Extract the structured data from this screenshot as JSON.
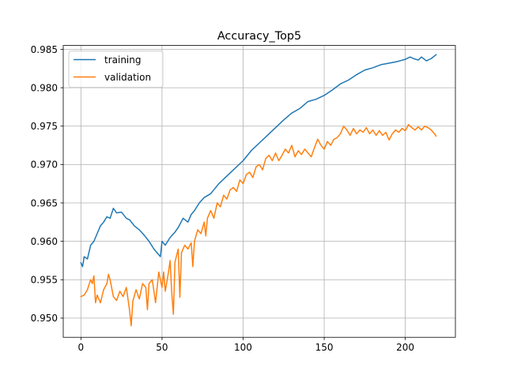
{
  "chart_data": {
    "type": "line",
    "title": "Accuracy_Top5",
    "xlabel": "",
    "ylabel": "",
    "xlim": [
      -10.9,
      230.9
    ],
    "ylim": [
      0.9475,
      0.9855
    ],
    "x_ticks": [
      0,
      50,
      100,
      150,
      200
    ],
    "x_tick_labels": [
      "0",
      "50",
      "100",
      "150",
      "200"
    ],
    "y_ticks": [
      0.95,
      0.955,
      0.96,
      0.965,
      0.97,
      0.975,
      0.98,
      0.985
    ],
    "y_tick_labels": [
      "0.950",
      "0.955",
      "0.960",
      "0.965",
      "0.970",
      "0.975",
      "0.980",
      "0.985"
    ],
    "grid": true,
    "legend_position": "top-left",
    "series": [
      {
        "name": "training",
        "color": "#1f77b4",
        "anchors": [
          [
            0,
            0.9572
          ],
          [
            1,
            0.9567
          ],
          [
            2,
            0.958
          ],
          [
            4,
            0.9577
          ],
          [
            6,
            0.9595
          ],
          [
            8,
            0.96
          ],
          [
            10,
            0.961
          ],
          [
            12,
            0.962
          ],
          [
            14,
            0.9625
          ],
          [
            16,
            0.9632
          ],
          [
            18,
            0.963
          ],
          [
            20,
            0.9643
          ],
          [
            22,
            0.9637
          ],
          [
            25,
            0.9638
          ],
          [
            28,
            0.963
          ],
          [
            30,
            0.9628
          ],
          [
            33,
            0.962
          ],
          [
            36,
            0.9615
          ],
          [
            39,
            0.9608
          ],
          [
            42,
            0.96
          ],
          [
            45,
            0.959
          ],
          [
            47,
            0.9585
          ],
          [
            49,
            0.958
          ],
          [
            50,
            0.96
          ],
          [
            52,
            0.9595
          ],
          [
            55,
            0.9605
          ],
          [
            58,
            0.9612
          ],
          [
            60,
            0.9618
          ],
          [
            63,
            0.963
          ],
          [
            66,
            0.9625
          ],
          [
            68,
            0.9635
          ],
          [
            70,
            0.964
          ],
          [
            73,
            0.965
          ],
          [
            76,
            0.9657
          ],
          [
            80,
            0.9662
          ],
          [
            85,
            0.9675
          ],
          [
            90,
            0.9685
          ],
          [
            95,
            0.9695
          ],
          [
            100,
            0.9705
          ],
          [
            105,
            0.9718
          ],
          [
            110,
            0.9728
          ],
          [
            115,
            0.9738
          ],
          [
            120,
            0.9748
          ],
          [
            125,
            0.9758
          ],
          [
            130,
            0.9767
          ],
          [
            135,
            0.9773
          ],
          [
            140,
            0.9782
          ],
          [
            145,
            0.9785
          ],
          [
            150,
            0.979
          ],
          [
            155,
            0.9797
          ],
          [
            160,
            0.9805
          ],
          [
            165,
            0.981
          ],
          [
            170,
            0.9817
          ],
          [
            175,
            0.9823
          ],
          [
            180,
            0.9826
          ],
          [
            185,
            0.983
          ],
          [
            190,
            0.9832
          ],
          [
            195,
            0.9834
          ],
          [
            200,
            0.9837
          ],
          [
            203,
            0.984
          ],
          [
            205,
            0.9838
          ],
          [
            208,
            0.9836
          ],
          [
            210,
            0.984
          ],
          [
            213,
            0.9835
          ],
          [
            216,
            0.9838
          ],
          [
            219,
            0.9843
          ]
        ]
      },
      {
        "name": "validation",
        "color": "#ff7f0e",
        "anchors": [
          [
            0,
            0.9528
          ],
          [
            2,
            0.953
          ],
          [
            4,
            0.9537
          ],
          [
            6,
            0.955
          ],
          [
            7,
            0.9545
          ],
          [
            8,
            0.9555
          ],
          [
            9,
            0.952
          ],
          [
            10,
            0.953
          ],
          [
            12,
            0.952
          ],
          [
            14,
            0.9537
          ],
          [
            16,
            0.9545
          ],
          [
            17,
            0.9557
          ],
          [
            18,
            0.955
          ],
          [
            20,
            0.9528
          ],
          [
            22,
            0.9523
          ],
          [
            24,
            0.9535
          ],
          [
            26,
            0.9528
          ],
          [
            28,
            0.954
          ],
          [
            30,
            0.951
          ],
          [
            31,
            0.949
          ],
          [
            32,
            0.9522
          ],
          [
            34,
            0.9537
          ],
          [
            36,
            0.9525
          ],
          [
            38,
            0.9545
          ],
          [
            40,
            0.954
          ],
          [
            41,
            0.9511
          ],
          [
            42,
            0.9545
          ],
          [
            44,
            0.955
          ],
          [
            46,
            0.952
          ],
          [
            48,
            0.956
          ],
          [
            50,
            0.954
          ],
          [
            51,
            0.956
          ],
          [
            52,
            0.9535
          ],
          [
            54,
            0.956
          ],
          [
            55,
            0.9575
          ],
          [
            56,
            0.9533
          ],
          [
            57,
            0.9505
          ],
          [
            58,
            0.9573
          ],
          [
            60,
            0.959
          ],
          [
            61,
            0.9527
          ],
          [
            62,
            0.9585
          ],
          [
            64,
            0.9595
          ],
          [
            66,
            0.959
          ],
          [
            68,
            0.9598
          ],
          [
            69,
            0.9567
          ],
          [
            70,
            0.96
          ],
          [
            72,
            0.9615
          ],
          [
            74,
            0.961
          ],
          [
            76,
            0.9625
          ],
          [
            77,
            0.9607
          ],
          [
            78,
            0.963
          ],
          [
            80,
            0.964
          ],
          [
            82,
            0.963
          ],
          [
            84,
            0.965
          ],
          [
            86,
            0.9645
          ],
          [
            88,
            0.966
          ],
          [
            90,
            0.9655
          ],
          [
            92,
            0.9667
          ],
          [
            94,
            0.967
          ],
          [
            96,
            0.9665
          ],
          [
            98,
            0.968
          ],
          [
            100,
            0.9675
          ],
          [
            102,
            0.9687
          ],
          [
            104,
            0.969
          ],
          [
            106,
            0.9683
          ],
          [
            108,
            0.9697
          ],
          [
            110,
            0.97
          ],
          [
            112,
            0.9693
          ],
          [
            114,
            0.9708
          ],
          [
            116,
            0.9712
          ],
          [
            118,
            0.9705
          ],
          [
            120,
            0.9715
          ],
          [
            122,
            0.9705
          ],
          [
            124,
            0.9712
          ],
          [
            126,
            0.972
          ],
          [
            128,
            0.9715
          ],
          [
            130,
            0.9725
          ],
          [
            132,
            0.971
          ],
          [
            134,
            0.9718
          ],
          [
            136,
            0.9713
          ],
          [
            138,
            0.972
          ],
          [
            140,
            0.9715
          ],
          [
            142,
            0.971
          ],
          [
            144,
            0.9722
          ],
          [
            146,
            0.9733
          ],
          [
            148,
            0.9725
          ],
          [
            150,
            0.972
          ],
          [
            152,
            0.973
          ],
          [
            154,
            0.9725
          ],
          [
            156,
            0.9733
          ],
          [
            158,
            0.9735
          ],
          [
            160,
            0.974
          ],
          [
            162,
            0.975
          ],
          [
            164,
            0.9745
          ],
          [
            166,
            0.9738
          ],
          [
            168,
            0.9747
          ],
          [
            170,
            0.974
          ],
          [
            172,
            0.9745
          ],
          [
            174,
            0.9742
          ],
          [
            176,
            0.9748
          ],
          [
            178,
            0.974
          ],
          [
            180,
            0.9745
          ],
          [
            182,
            0.9738
          ],
          [
            184,
            0.9744
          ],
          [
            186,
            0.9738
          ],
          [
            188,
            0.9742
          ],
          [
            190,
            0.9732
          ],
          [
            192,
            0.974
          ],
          [
            194,
            0.9745
          ],
          [
            196,
            0.9742
          ],
          [
            198,
            0.9747
          ],
          [
            200,
            0.9744
          ],
          [
            202,
            0.9752
          ],
          [
            204,
            0.9748
          ],
          [
            206,
            0.9745
          ],
          [
            208,
            0.9749
          ],
          [
            210,
            0.9745
          ],
          [
            212,
            0.975
          ],
          [
            214,
            0.9748
          ],
          [
            216,
            0.9745
          ],
          [
            218,
            0.974
          ],
          [
            219,
            0.9737
          ]
        ]
      }
    ]
  }
}
